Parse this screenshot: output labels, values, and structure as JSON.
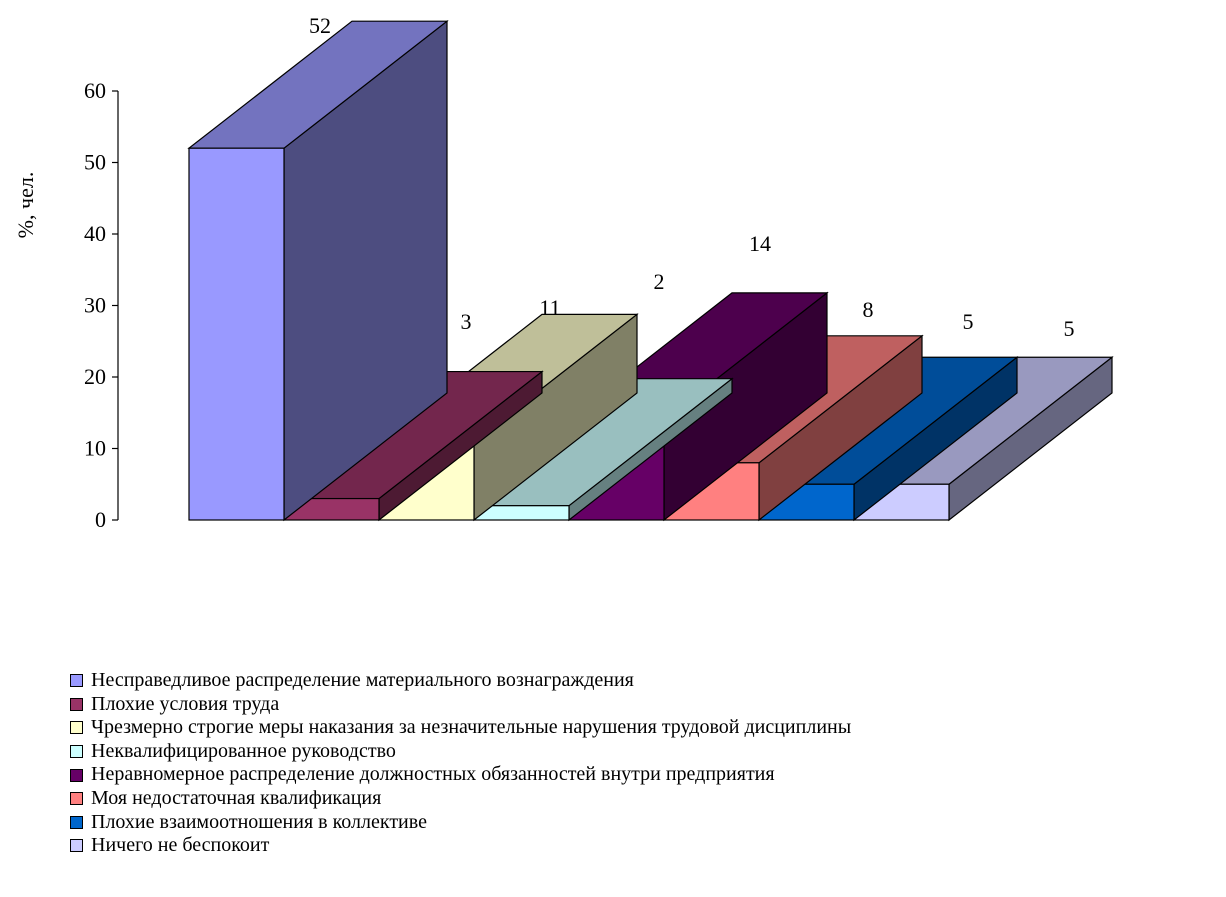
{
  "chart_data": {
    "type": "bar",
    "title": "",
    "ylabel": "%, чел.",
    "xlabel": "",
    "ylim": [
      0,
      60
    ],
    "yticks": [
      0,
      10,
      20,
      30,
      40,
      50,
      60
    ],
    "grid": false,
    "three_d": true,
    "legend_position": "bottom",
    "categories": [
      "Несправедливое распределение материального вознаграждения",
      "Плохие условия труда",
      "Чрезмерно строгие меры наказания за незначительные нарушения трудовой дисциплины",
      "Неквалифицированное руководство",
      "Неравномерное распределение должностных обязанностей внутри предприятия",
      "Моя недостаточная квалификация",
      "Плохие взаимоотношения в коллективе",
      "Ничего не беспокоит"
    ],
    "values": [
      52,
      3,
      11,
      2,
      14,
      8,
      5,
      5
    ],
    "value_labels": [
      "52",
      "3",
      "11",
      "2",
      "14",
      "8",
      "5",
      "5"
    ],
    "colors": [
      "#9999ff",
      "#993366",
      "#ffffcc",
      "#ccffff",
      "#660066",
      "#ff8080",
      "#0066cc",
      "#ccccff"
    ]
  }
}
